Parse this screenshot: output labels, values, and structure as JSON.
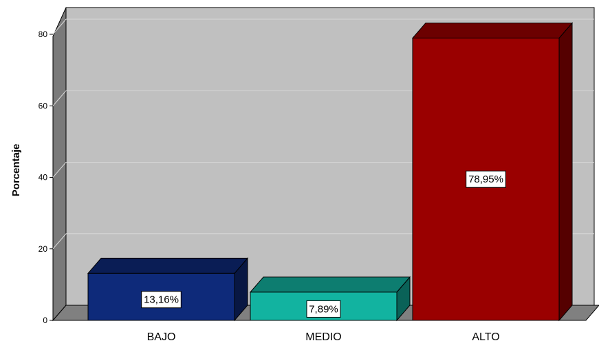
{
  "chart_data": {
    "type": "bar",
    "categories": [
      "BAJO",
      "MEDIO",
      "ALTO"
    ],
    "values": [
      13.16,
      7.89,
      78.95
    ],
    "data_labels": [
      "13,16%",
      "7,89%",
      "78,95%"
    ],
    "ylabel": "Porcentaje",
    "xlabel": "",
    "ylim": [
      0,
      85
    ],
    "yticks": [
      0,
      20,
      40,
      60,
      80
    ],
    "grid": true,
    "style": "3d",
    "colors": [
      "#0e2a7a",
      "#12b3a0",
      "#9a0000"
    ],
    "wall_color": "#c0c0c0",
    "floor_color": "#808080"
  }
}
